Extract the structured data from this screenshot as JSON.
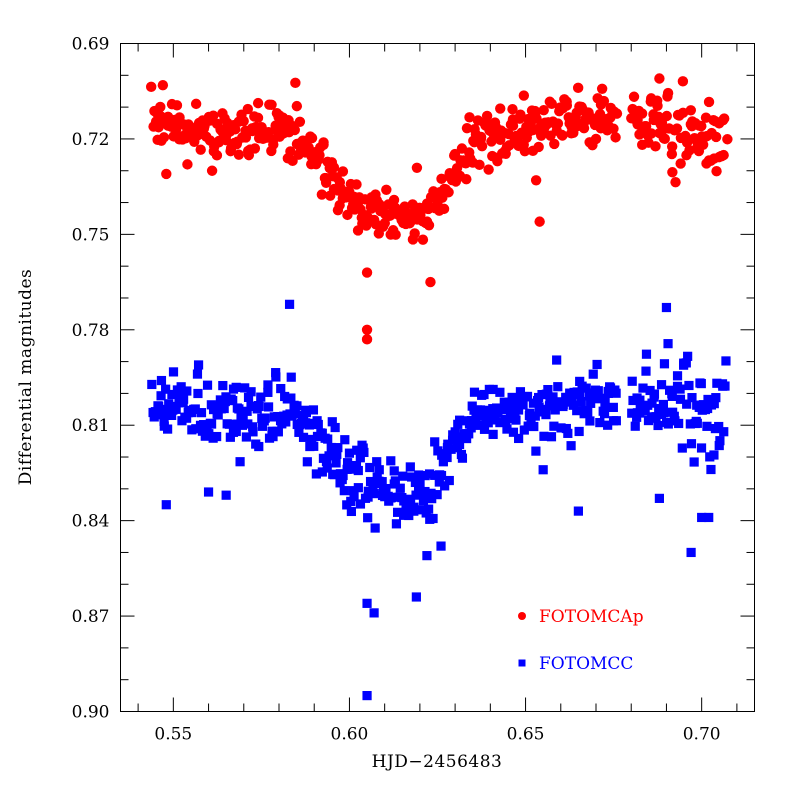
{
  "chart_data": {
    "type": "scatter",
    "title": "",
    "xlabel": "HJD−2456483",
    "ylabel": "Differential magnitudes",
    "xlim": [
      0.535,
      0.715
    ],
    "ylim": [
      0.69,
      0.9
    ],
    "y_inverted": true,
    "x_ticks": [
      0.55,
      0.6,
      0.65,
      0.7
    ],
    "x_tick_labels": [
      "0.55",
      "0.60",
      "0.65",
      "0.70"
    ],
    "y_ticks": [
      0.69,
      0.72,
      0.75,
      0.78,
      0.81,
      0.84,
      0.87,
      0.9
    ],
    "y_tick_labels": [
      "0.69",
      "0.72",
      "0.75",
      "0.78",
      "0.81",
      "0.84",
      "0.87",
      "0.90"
    ],
    "x_minor_step": 0.01,
    "y_minor_step": 0.01,
    "grid": false,
    "legend_position": "bottom-right",
    "series": [
      {
        "name": "FOTOMCAp",
        "color": "#ff0000",
        "marker": "circle",
        "lightcurve": {
          "baseline": 0.716,
          "scatter": 0.004,
          "eclipse_center": 0.607,
          "eclipse_depth": 0.03,
          "ingress_start": 0.583,
          "ingress_end": 0.603,
          "egress_start": 0.622,
          "egress_end": 0.636,
          "x_start": 0.544,
          "x_end": 0.707,
          "gap": [
            0.676,
            0.68
          ]
        },
        "outliers": [
          {
            "x": 0.548,
            "y": 0.731
          },
          {
            "x": 0.554,
            "y": 0.728
          },
          {
            "x": 0.605,
            "y": 0.762
          },
          {
            "x": 0.605,
            "y": 0.78
          },
          {
            "x": 0.605,
            "y": 0.783
          },
          {
            "x": 0.623,
            "y": 0.765
          },
          {
            "x": 0.653,
            "y": 0.733
          },
          {
            "x": 0.654,
            "y": 0.746
          },
          {
            "x": 0.642,
            "y": 0.727
          },
          {
            "x": 0.688,
            "y": 0.701
          },
          {
            "x": 0.67,
            "y": 0.72
          }
        ]
      },
      {
        "name": "FOTOMCC",
        "color": "#0000ff",
        "marker": "square",
        "lightcurve": {
          "baseline": 0.804,
          "scatter": 0.005,
          "eclipse_center": 0.607,
          "eclipse_depth": 0.028,
          "ingress_start": 0.583,
          "ingress_end": 0.603,
          "egress_start": 0.622,
          "egress_end": 0.636,
          "x_start": 0.544,
          "x_end": 0.707,
          "gap": [
            0.676,
            0.68
          ]
        },
        "outliers": [
          {
            "x": 0.548,
            "y": 0.835
          },
          {
            "x": 0.56,
            "y": 0.831
          },
          {
            "x": 0.565,
            "y": 0.832
          },
          {
            "x": 0.583,
            "y": 0.772
          },
          {
            "x": 0.587,
            "y": 0.808
          },
          {
            "x": 0.605,
            "y": 0.866
          },
          {
            "x": 0.607,
            "y": 0.869
          },
          {
            "x": 0.605,
            "y": 0.895
          },
          {
            "x": 0.619,
            "y": 0.864
          },
          {
            "x": 0.622,
            "y": 0.851
          },
          {
            "x": 0.626,
            "y": 0.848
          },
          {
            "x": 0.655,
            "y": 0.824
          },
          {
            "x": 0.665,
            "y": 0.837
          },
          {
            "x": 0.688,
            "y": 0.833
          },
          {
            "x": 0.69,
            "y": 0.773
          },
          {
            "x": 0.697,
            "y": 0.85
          },
          {
            "x": 0.7,
            "y": 0.839
          },
          {
            "x": 0.702,
            "y": 0.839
          }
        ]
      }
    ]
  }
}
